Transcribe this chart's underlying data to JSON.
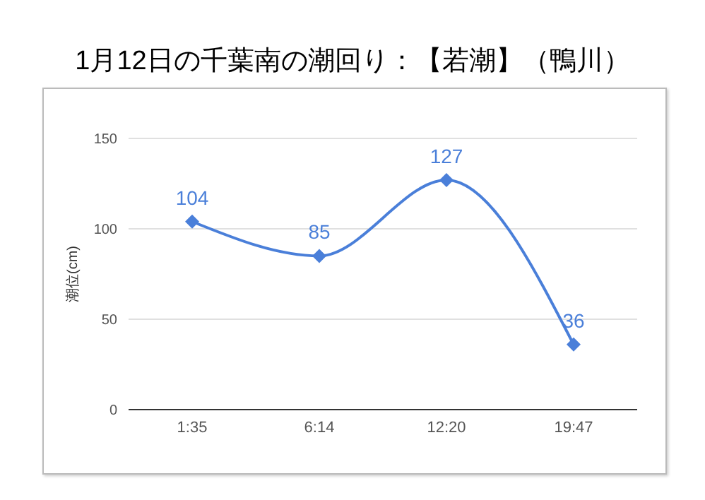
{
  "chart_data": {
    "type": "line",
    "title": "1月12日の千葉南の潮回り：【若潮】（鴨川）",
    "ylabel": "潮位(cm)",
    "categories": [
      "1:35",
      "6:14",
      "12:20",
      "19:47"
    ],
    "series": [
      {
        "color": "#4a7fd9",
        "values": [
          104,
          85,
          127,
          36
        ]
      }
    ],
    "ylim": [
      0,
      150
    ],
    "yticks": [
      0,
      50,
      100,
      150
    ],
    "grid": "y",
    "marker": "diamond",
    "data_labels": true
  }
}
